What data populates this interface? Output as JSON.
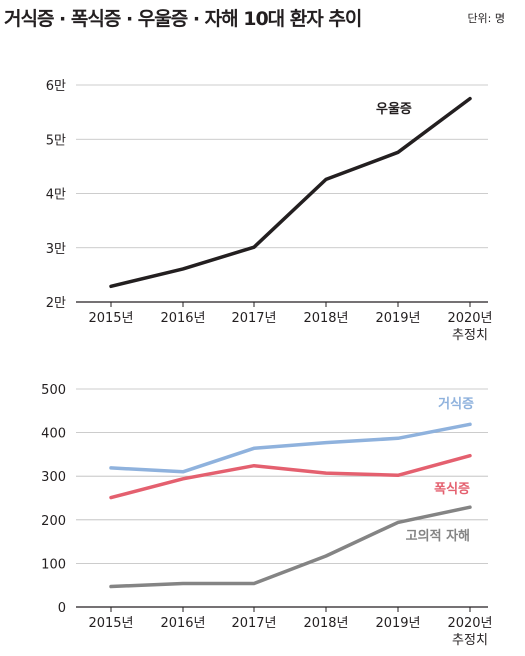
{
  "header": {
    "title": "거식증 · 폭식증 · 우울증 · 자해 10대 환자 추이",
    "unit": "단위: 명"
  },
  "chart_data": [
    {
      "type": "line",
      "x": [
        "2015년",
        "2016년",
        "2017년",
        "2018년",
        "2019년",
        "2020년"
      ],
      "x_sublabels": [
        "",
        "",
        "",
        "",
        "",
        "추정치"
      ],
      "y_ticks": [
        20000,
        30000,
        40000,
        50000,
        60000
      ],
      "y_tick_labels": [
        "2만",
        "3만",
        "4만",
        "5만",
        "6만"
      ],
      "ylim": [
        20000,
        60000
      ],
      "grid": true,
      "series": [
        {
          "name": "우울증",
          "color": "#231f20",
          "values": [
            22900,
            26100,
            30100,
            42600,
            47600,
            57500
          ]
        }
      ]
    },
    {
      "type": "line",
      "x": [
        "2015년",
        "2016년",
        "2017년",
        "2018년",
        "2019년",
        "2020년"
      ],
      "x_sublabels": [
        "",
        "",
        "",
        "",
        "",
        "추정치"
      ],
      "y_ticks": [
        0,
        100,
        200,
        300,
        400,
        500
      ],
      "y_tick_labels": [
        "0",
        "100",
        "200",
        "300",
        "400",
        "500"
      ],
      "ylim": [
        0,
        500
      ],
      "grid": true,
      "series": [
        {
          "name": "거식증",
          "color": "#8fb2dd",
          "values": [
            319,
            310,
            364,
            377,
            387,
            419
          ]
        },
        {
          "name": "폭식증",
          "color": "#e4606f",
          "values": [
            251,
            294,
            324,
            307,
            302,
            347
          ]
        },
        {
          "name": "고의적 자해",
          "color": "#848484",
          "values": [
            47,
            54,
            54,
            117,
            194,
            229
          ]
        }
      ]
    }
  ]
}
